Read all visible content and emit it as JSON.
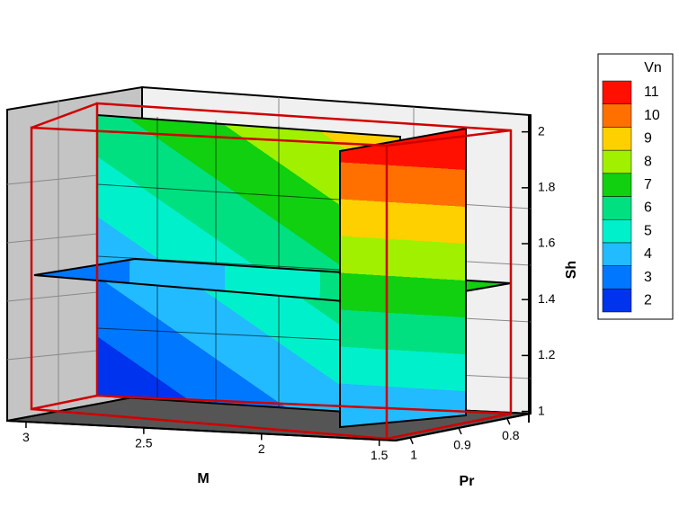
{
  "chart_data": {
    "type": "contour3d",
    "legend": {
      "title": "Vn",
      "levels": [
        2,
        3,
        4,
        5,
        6,
        7,
        8,
        9,
        10,
        11
      ],
      "colors": [
        "#0033ee",
        "#0077ff",
        "#22bbff",
        "#00f0cc",
        "#00e080",
        "#10d010",
        "#a0f000",
        "#ffd000",
        "#ff7000",
        "#ff1000"
      ]
    },
    "x_label": "M",
    "xlim": [
      3.08,
      1.43
    ],
    "xticks": [
      3,
      2.5,
      2,
      1.5
    ],
    "z_label": "Pr",
    "zlim": [
      1.03,
      0.77
    ],
    "zticks": [
      1,
      0.9,
      0.8
    ],
    "y_label": "Sh",
    "ylim": [
      0.96,
      2.06
    ],
    "yticks": [
      1,
      1.2,
      1.4,
      1.6,
      1.8,
      2
    ]
  }
}
